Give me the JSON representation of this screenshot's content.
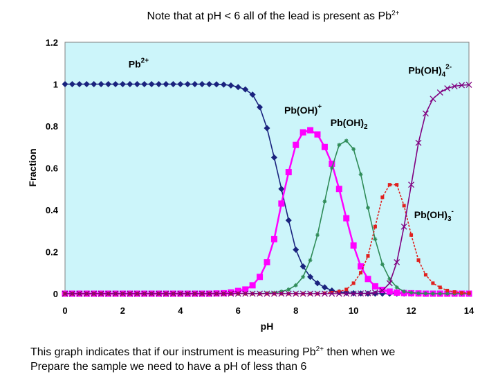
{
  "title": {
    "prefix": "Note that at pH < 6 all of the lead is present as Pb",
    "sup": "2+"
  },
  "caption": {
    "line1_prefix": "This graph indicates that if our instrument is measuring Pb",
    "line1_sup": "2+",
    "line1_suffix": " then when we",
    "line2": "Prepare the sample we need to have a pH of less than 6"
  },
  "chart_data": {
    "type": "line",
    "xlabel": "pH",
    "ylabel": "Fraction",
    "xlim": [
      0,
      14
    ],
    "ylim": [
      0,
      1.2
    ],
    "x_ticks": [
      "0",
      "2",
      "4",
      "6",
      "8",
      "10",
      "12",
      "14"
    ],
    "y_ticks": [
      "0",
      "0.2",
      "0.4",
      "0.6",
      "0.8",
      "1",
      "1.2"
    ],
    "grid": false,
    "background": "#ccf5fa",
    "x": [
      0,
      0.25,
      0.5,
      0.75,
      1,
      1.25,
      1.5,
      1.75,
      2,
      2.25,
      2.5,
      2.75,
      3,
      3.25,
      3.5,
      3.75,
      4,
      4.25,
      4.5,
      4.75,
      5,
      5.25,
      5.5,
      5.75,
      6,
      6.25,
      6.5,
      6.75,
      7,
      7.25,
      7.5,
      7.75,
      8,
      8.25,
      8.5,
      8.75,
      9,
      9.25,
      9.5,
      9.75,
      10,
      10.25,
      10.5,
      10.75,
      11,
      11.25,
      11.5,
      11.75,
      12,
      12.25,
      12.5,
      12.75,
      13,
      13.25,
      13.5,
      13.75,
      14
    ],
    "series": [
      {
        "name": "Pb2+",
        "color": "#1a237e",
        "marker": "diamond",
        "values": [
          1,
          1,
          1,
          1,
          1,
          1,
          1,
          1,
          1,
          1,
          1,
          1,
          1,
          1,
          1,
          1,
          1,
          1,
          1,
          1,
          1,
          0.999,
          0.998,
          0.994,
          0.986,
          0.975,
          0.95,
          0.89,
          0.79,
          0.65,
          0.5,
          0.35,
          0.21,
          0.13,
          0.08,
          0.05,
          0.03,
          0.015,
          0.007,
          0.004,
          0.002,
          0.001,
          0,
          0,
          0,
          0,
          0,
          0,
          0,
          0,
          0,
          0,
          0,
          0,
          0,
          0,
          0
        ]
      },
      {
        "name": "Pb(OH)+",
        "color": "#ff00ff",
        "marker": "square",
        "values": [
          0,
          0,
          0,
          0,
          0,
          0,
          0,
          0,
          0,
          0,
          0,
          0,
          0,
          0,
          0,
          0,
          0,
          0,
          0,
          0,
          0,
          0.001,
          0.002,
          0.006,
          0.013,
          0.02,
          0.04,
          0.08,
          0.15,
          0.26,
          0.43,
          0.58,
          0.71,
          0.77,
          0.78,
          0.76,
          0.7,
          0.62,
          0.5,
          0.36,
          0.23,
          0.13,
          0.07,
          0.035,
          0.018,
          0.01,
          0.005,
          0.003,
          0.002,
          0.001,
          0,
          0,
          0,
          0,
          0,
          0,
          0
        ]
      },
      {
        "name": "Pb(OH)2",
        "color": "#2e8b57",
        "marker": "star",
        "values": [
          0,
          0,
          0,
          0,
          0,
          0,
          0,
          0,
          0,
          0,
          0,
          0,
          0,
          0,
          0,
          0,
          0,
          0,
          0,
          0,
          0,
          0,
          0,
          0,
          0,
          0,
          0,
          0,
          0.002,
          0.004,
          0.01,
          0.02,
          0.04,
          0.08,
          0.16,
          0.28,
          0.44,
          0.6,
          0.71,
          0.73,
          0.69,
          0.57,
          0.41,
          0.26,
          0.14,
          0.07,
          0.03,
          0.01,
          0.005,
          0.002,
          0.001,
          0,
          0,
          0,
          0,
          0,
          0
        ]
      },
      {
        "name": "Pb(OH)3-",
        "color": "#e0201e",
        "marker": "square-small",
        "values": [
          0,
          0,
          0,
          0,
          0,
          0,
          0,
          0,
          0,
          0,
          0,
          0,
          0,
          0,
          0,
          0,
          0,
          0,
          0,
          0,
          0,
          0,
          0,
          0,
          0,
          0,
          0,
          0,
          0,
          0,
          0,
          0,
          0,
          0,
          0,
          0,
          0.002,
          0.005,
          0.01,
          0.02,
          0.05,
          0.1,
          0.18,
          0.32,
          0.46,
          0.52,
          0.52,
          0.42,
          0.28,
          0.16,
          0.09,
          0.05,
          0.03,
          0.015,
          0.008,
          0.004,
          0.003
        ]
      },
      {
        "name": "Pb(OH)42-",
        "color": "#800080",
        "marker": "x",
        "values": [
          0,
          0,
          0,
          0,
          0,
          0,
          0,
          0,
          0,
          0,
          0,
          0,
          0,
          0,
          0,
          0,
          0,
          0,
          0,
          0,
          0,
          0,
          0,
          0,
          0,
          0,
          0,
          0,
          0,
          0,
          0,
          0,
          0,
          0,
          0,
          0,
          0,
          0,
          0,
          0,
          0,
          0.001,
          0.002,
          0.005,
          0.015,
          0.05,
          0.15,
          0.32,
          0.52,
          0.72,
          0.86,
          0.93,
          0.96,
          0.98,
          0.99,
          0.995,
          0.997
        ]
      }
    ],
    "annotations": [
      {
        "base": "Pb",
        "sup": "2+",
        "sub": "",
        "x": 2.2,
        "y": 1.08
      },
      {
        "base": "Pb(OH)",
        "sup": "+",
        "sub": "",
        "x": 7.6,
        "y": 0.86
      },
      {
        "base": "Pb(OH)",
        "sup": "",
        "sub": "2",
        "x": 9.2,
        "y": 0.8
      },
      {
        "base": "Pb(OH)",
        "sup": "2-",
        "sub": "4",
        "x": 11.9,
        "y": 1.05
      },
      {
        "base": "Pb(OH)",
        "sup": "-",
        "sub": "3",
        "x": 12.1,
        "y": 0.36
      }
    ]
  }
}
